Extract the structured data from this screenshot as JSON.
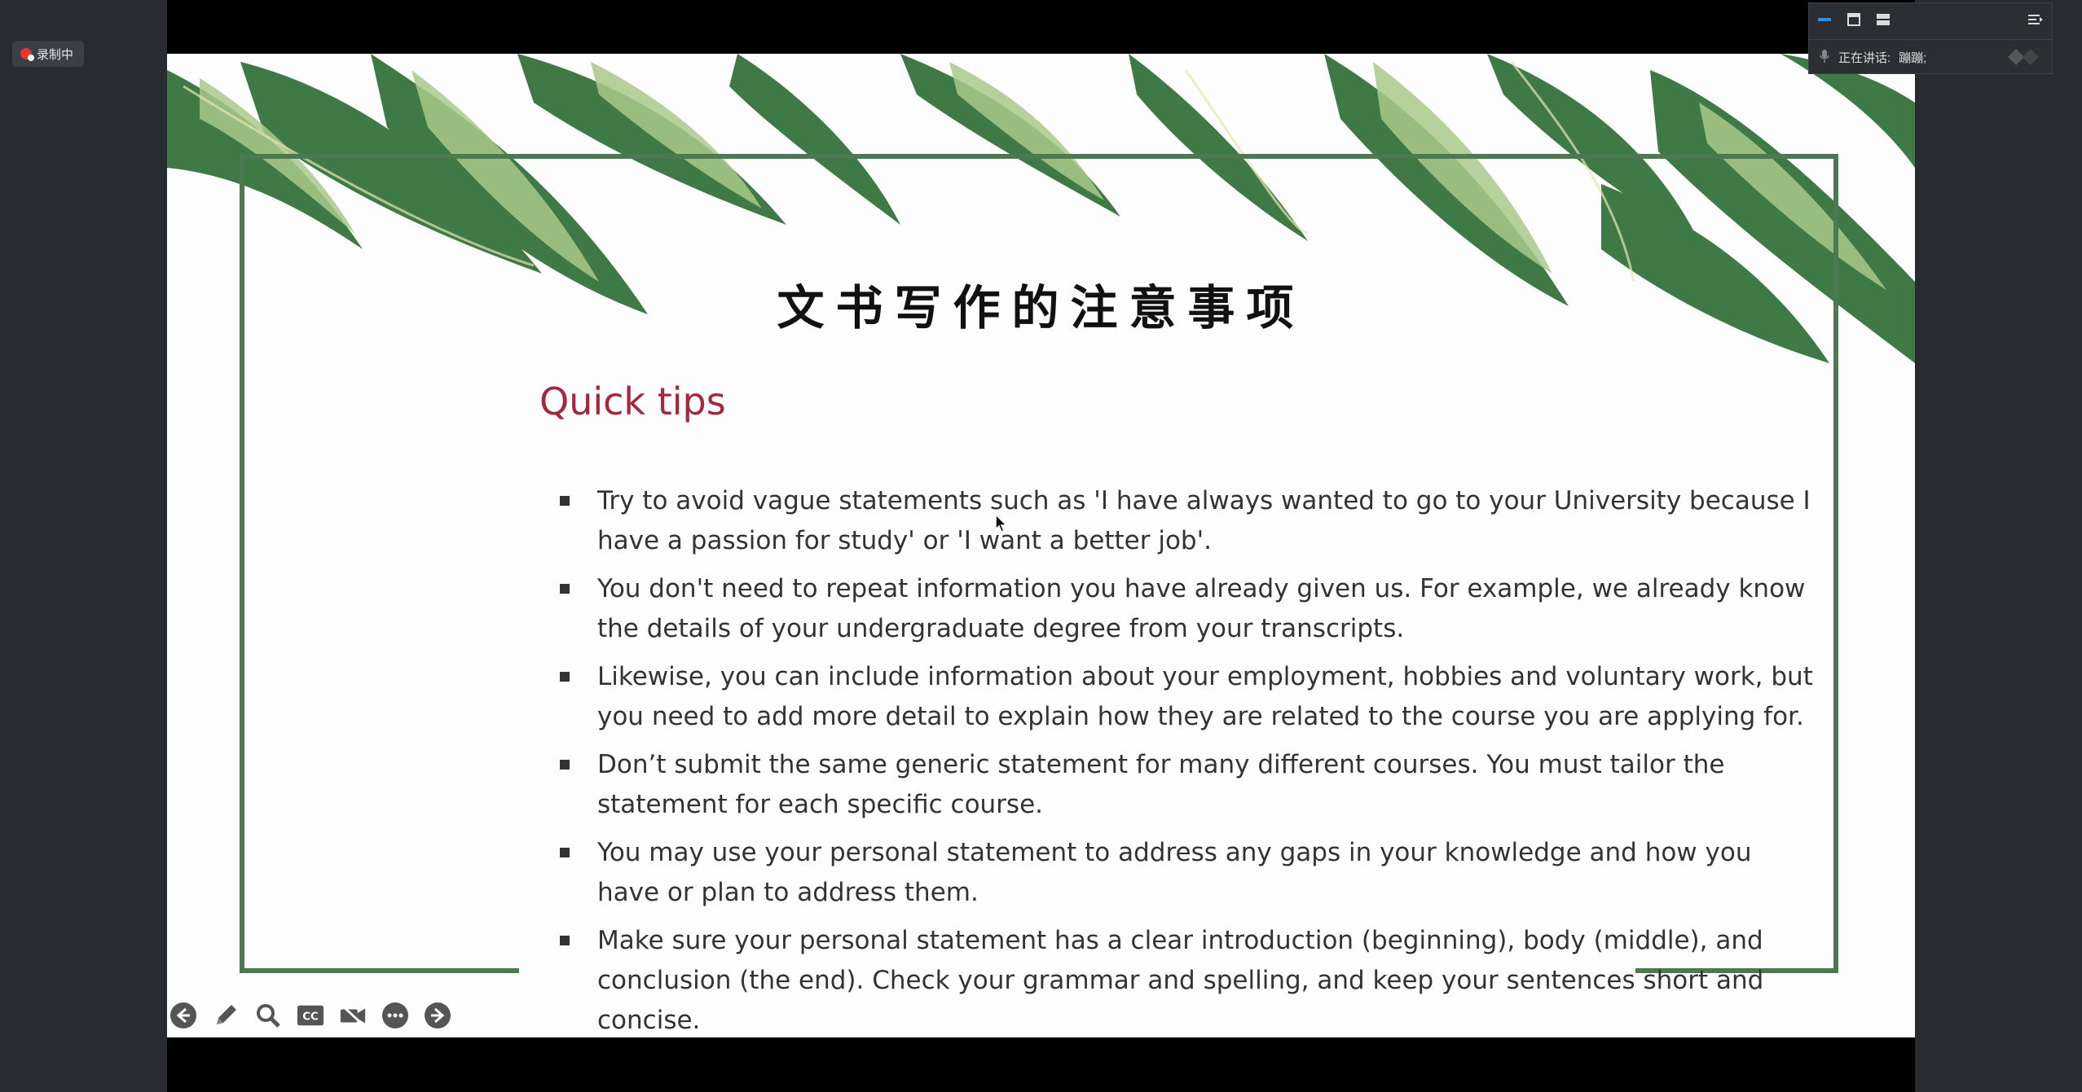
{
  "recording_badge": {
    "label": "录制中"
  },
  "slide": {
    "title": "文书写作的注意事项",
    "heading": "Quick tips",
    "tips": [
      "Try to avoid vague statements such as 'I have always wanted to go to your University because I have a passion for study' or 'I want a better job'.",
      "You don't need to repeat information you have already given us. For example, we already know the details of your undergraduate degree from your transcripts.",
      "Likewise, you can include information about your employment, hobbies and voluntary work, but you need to add more detail to explain how they are related to the course you are applying for.",
      "Don’t submit the same generic statement for many different courses. You must tailor the statement for each specific course.",
      "You may use your personal statement to address any gaps in your knowledge and how you have or plan to address them.",
      "Make sure your personal statement has a clear introduction (beginning), body (middle), and conclusion (the end). Check your grammar and spelling, and keep your sentences short and concise."
    ],
    "colors": {
      "heading": "#a4273d",
      "frame": "#4b7a52",
      "leaf_dark": "#3f7a46",
      "leaf_light": "#a9c98a"
    }
  },
  "toolbar": {
    "icons": [
      "arrow-left-icon",
      "pen-icon",
      "magnifier-icon",
      "cc-icon",
      "video-off-icon",
      "more-icon",
      "arrow-right-icon"
    ]
  },
  "speaker_panel": {
    "speaking_label": "正在讲话:",
    "speaker_name": "蹦蹦;"
  }
}
